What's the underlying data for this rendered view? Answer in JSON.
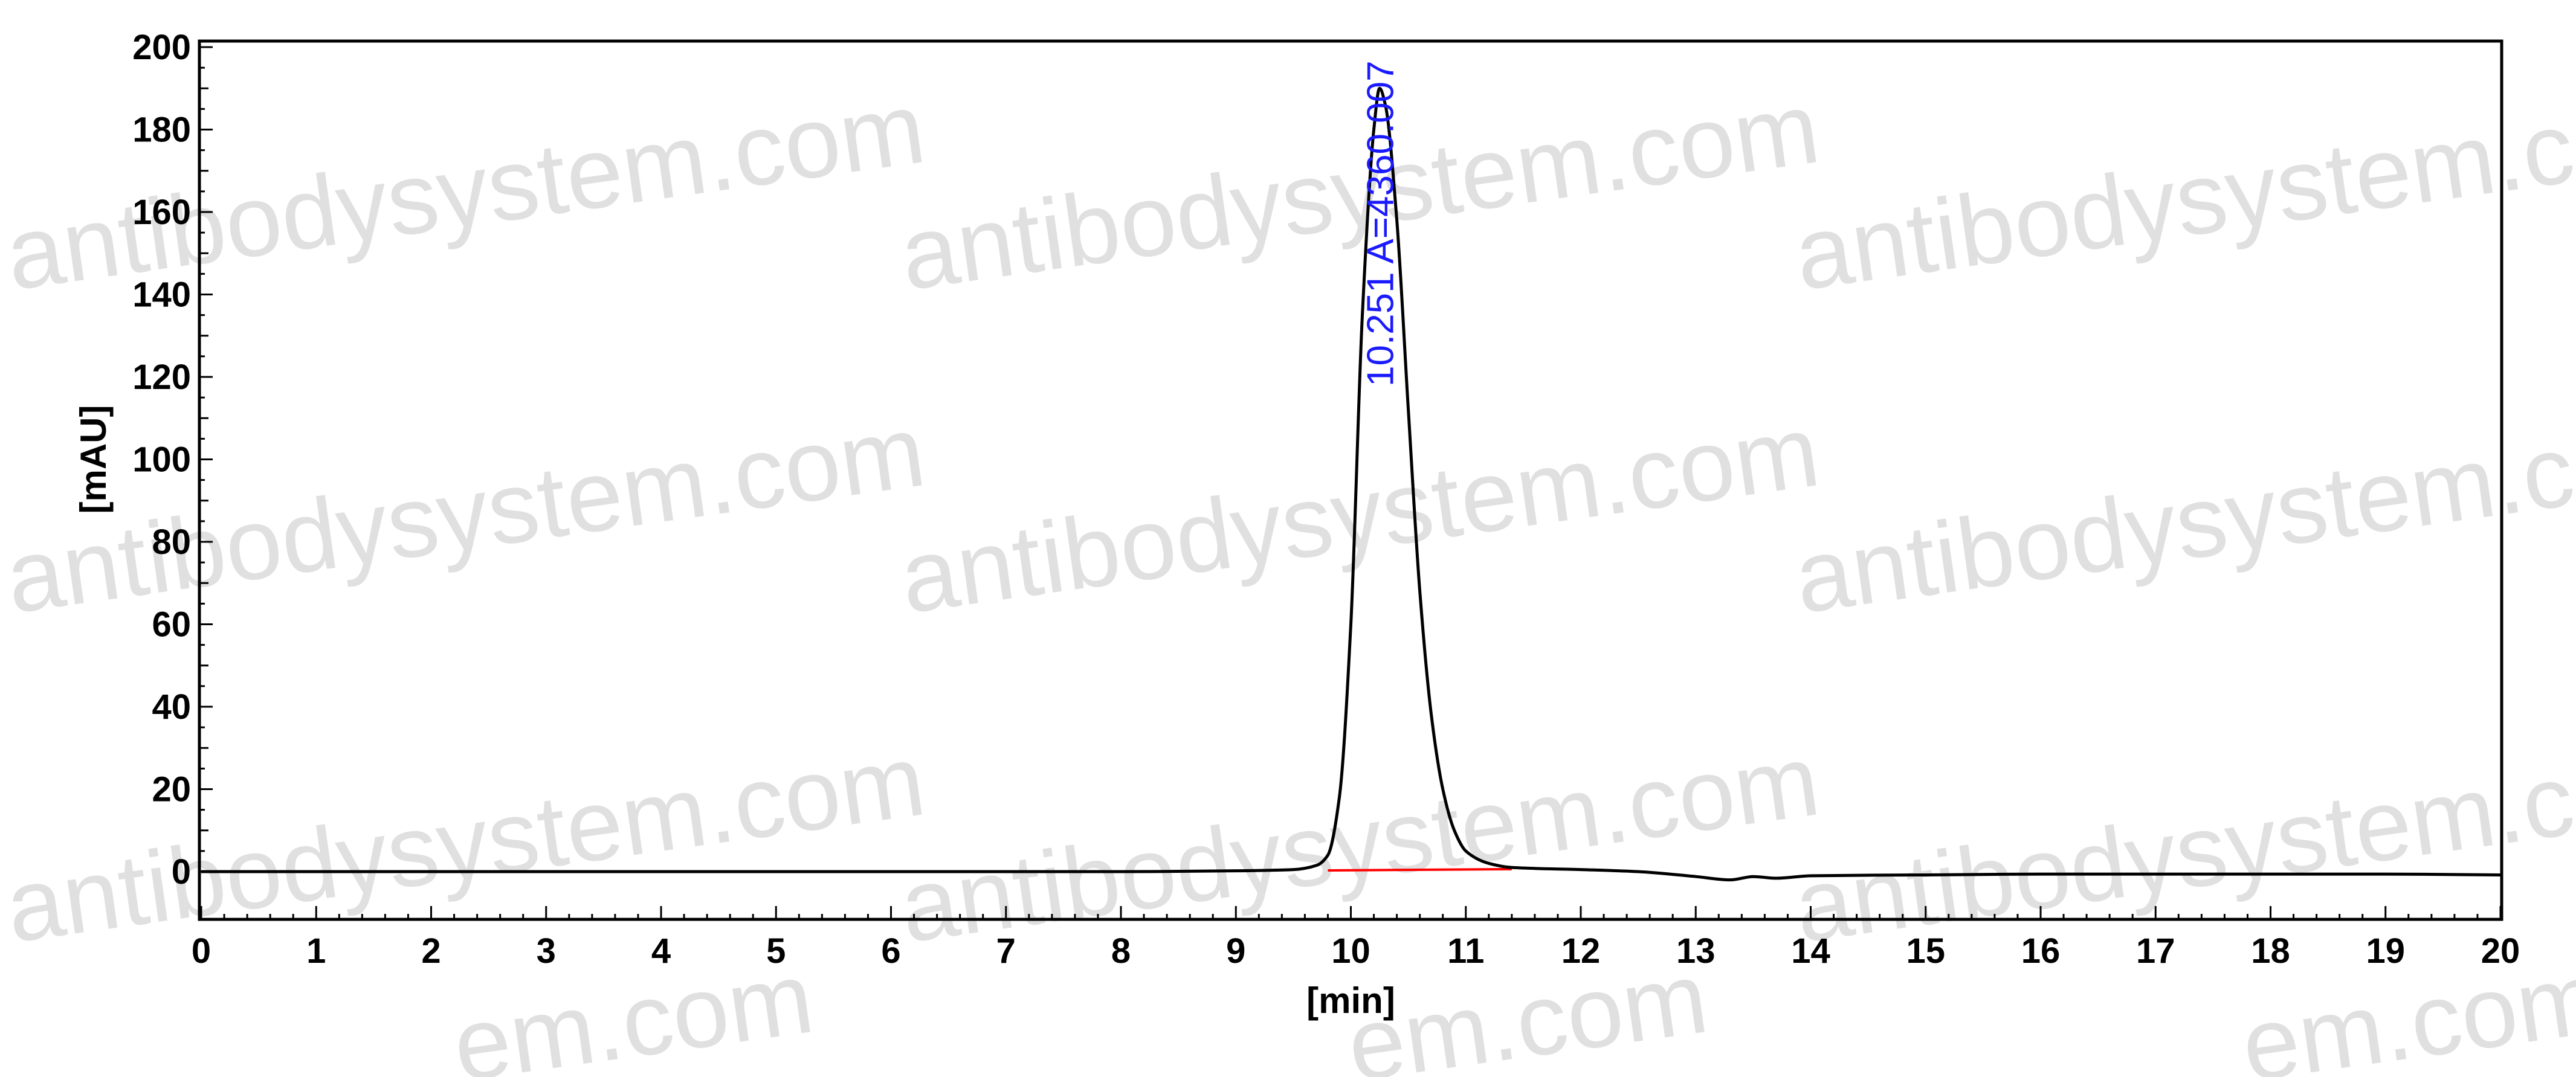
{
  "watermark": {
    "text_full": "antibodysystem.com",
    "text_partial": "em.com"
  },
  "colors": {
    "trace": "#000000",
    "baseline": "#ff0000",
    "peak_label": "#1a1aff",
    "watermark": "#c8c8c8",
    "frame": "#000000"
  },
  "chart_data": {
    "type": "line",
    "title": "",
    "xlabel": "[min]",
    "ylabel": "[mAU]",
    "xlim": [
      0,
      20
    ],
    "ylim": [
      0,
      200
    ],
    "xticks": [
      0,
      1,
      2,
      3,
      4,
      5,
      6,
      7,
      8,
      9,
      10,
      11,
      12,
      13,
      14,
      15,
      16,
      17,
      18,
      19,
      20
    ],
    "yticks": [
      0,
      20,
      40,
      60,
      80,
      100,
      120,
      140,
      160,
      180,
      200
    ],
    "grid": false,
    "legend": "none",
    "series": [
      {
        "x": [
          0,
          2,
          4,
          6,
          8,
          9.0,
          9.5,
          9.7,
          9.8,
          9.9,
          10.0,
          10.1,
          10.2,
          10.25,
          10.3,
          10.4,
          10.5,
          10.6,
          10.7,
          10.8,
          10.9,
          11.0,
          11.2,
          11.4,
          12.0,
          12.5,
          13.0,
          13.3,
          13.5,
          13.7,
          14.0,
          15.0,
          16.0,
          17.0,
          18.0,
          19.0,
          20.0
        ],
        "y": [
          0,
          0,
          0,
          0,
          0,
          0.2,
          0.5,
          1.5,
          4,
          18,
          60,
          135,
          180,
          190,
          186,
          158,
          112,
          68,
          38,
          20,
          10,
          5,
          2,
          1,
          0.5,
          0,
          -1.2,
          -2.0,
          -1.2,
          -1.6,
          -1,
          -0.8,
          -0.6,
          -0.6,
          -0.6,
          -0.6,
          -0.8
        ]
      }
    ],
    "baseline_segment": {
      "x": [
        9.8,
        11.4
      ],
      "y": [
        0.3,
        0.6
      ]
    },
    "annotations": [
      {
        "x": 10.251,
        "text": "10.251 A=4360.007"
      }
    ]
  }
}
